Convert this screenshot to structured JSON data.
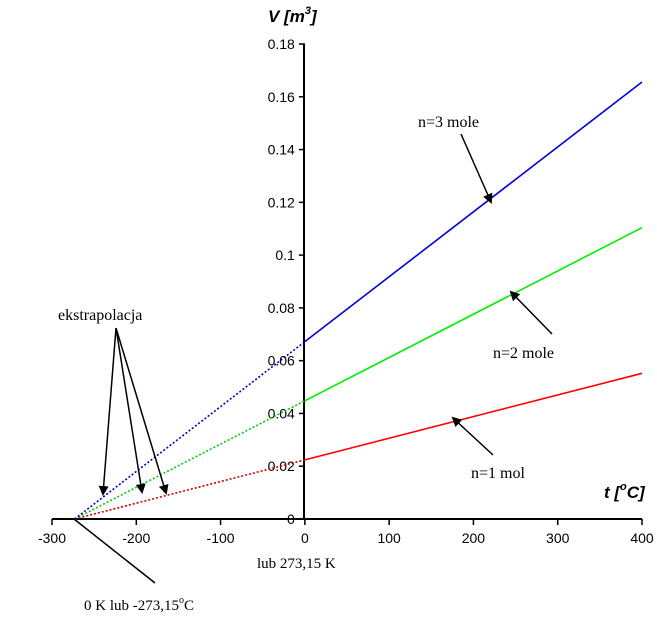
{
  "chart_data": {
    "type": "line",
    "title": "",
    "xlabel_main": "t [",
    "xlabel_sup": "o",
    "xlabel_tail": "C]",
    "ylabel_main": "V [m",
    "ylabel_sup": "3",
    "ylabel_tail": "]",
    "xlim": [
      -300,
      400
    ],
    "ylim": [
      0,
      0.18
    ],
    "x_ticks": [
      -300,
      -200,
      -100,
      0,
      100,
      200,
      300,
      400
    ],
    "x_tick_labels": [
      "-300",
      "-200",
      "-100",
      "0",
      "100",
      "200",
      "300",
      "400"
    ],
    "y_ticks": [
      0,
      0.02,
      0.04,
      0.06,
      0.08,
      0.1,
      0.12,
      0.14,
      0.16,
      0.18
    ],
    "y_tick_labels": [
      "0",
      "0.02",
      "0.04",
      "0.06",
      "0.08",
      "0.1",
      "0.12",
      "0.14",
      "0.16",
      "0.18"
    ],
    "zero_point": -273.15,
    "series": [
      {
        "name": "n=1 mol",
        "color": "#ff0000",
        "x": [
          0,
          400
        ],
        "values": [
          0.0224,
          0.0552
        ],
        "extrap_color": "#cc0000"
      },
      {
        "name": "n=2 mole",
        "color": "#00ee00",
        "x": [
          0,
          400
        ],
        "values": [
          0.0448,
          0.1104
        ],
        "extrap_color": "#00cc00"
      },
      {
        "name": "n=3 mole",
        "color": "#0000dd",
        "x": [
          0,
          400
        ],
        "values": [
          0.0672,
          0.1656
        ],
        "extrap_color": "#0000cc"
      }
    ],
    "annotations": {
      "n3": "n=3 mole",
      "n2": "n=2 mole",
      "n1": "n=1 mol",
      "extrap": "ekstrapolacja",
      "lub_k": "lub 273,15 K",
      "zero_main": "0 K lub -273,15",
      "zero_sup": "o",
      "zero_tail": "C"
    }
  }
}
